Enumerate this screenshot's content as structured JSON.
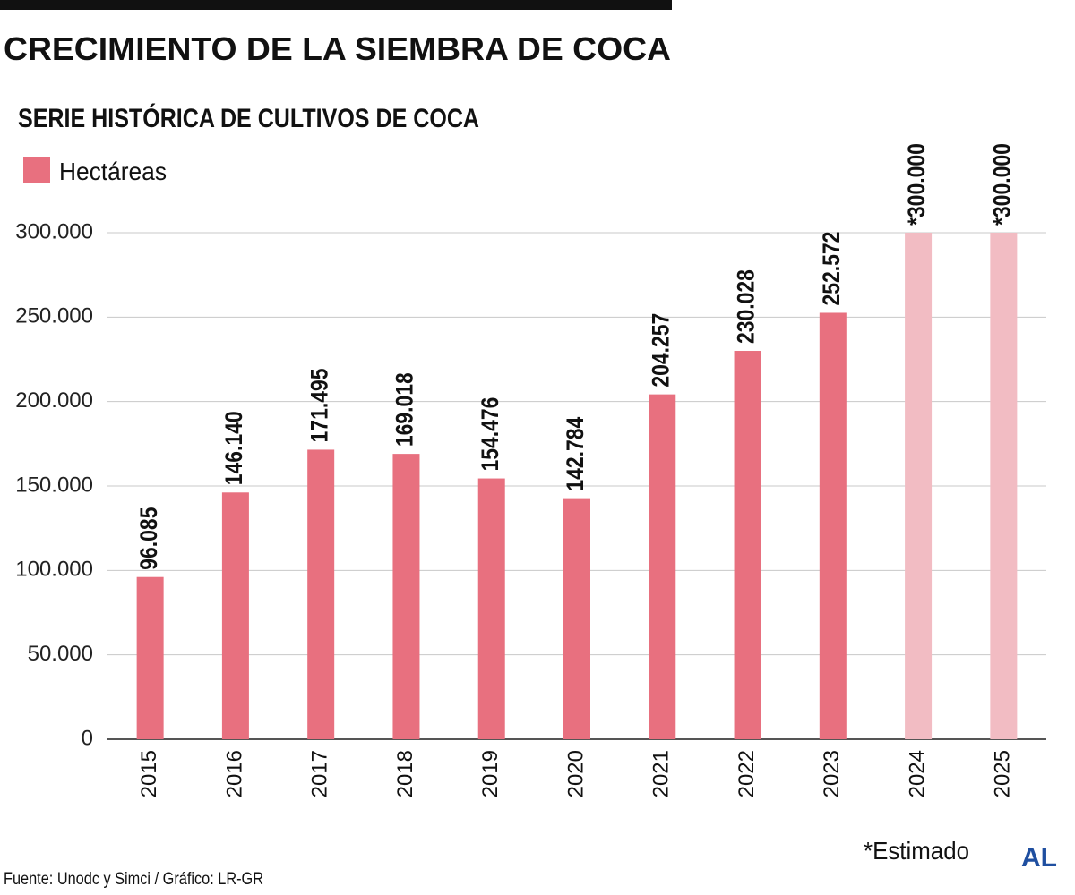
{
  "chart_data": {
    "type": "bar",
    "title": "CRECIMIENTO DE LA SIEMBRA DE COCA",
    "subtitle": "SERIE HISTÓRICA DE CULTIVOS DE COCA",
    "categories": [
      "2015",
      "2016",
      "2017",
      "2018",
      "2019",
      "2020",
      "2021",
      "2022",
      "2023",
      "2024",
      "2025"
    ],
    "series": [
      {
        "name": "Hectáreas",
        "color": "#e8707f",
        "values": [
          96085,
          146140,
          171495,
          169018,
          154476,
          142784,
          204257,
          230028,
          252572,
          300000,
          300000
        ],
        "value_labels": [
          "96.085",
          "146.140",
          "171.495",
          "169.018",
          "154.476",
          "142.784",
          "204.257",
          "230.028",
          "252.572",
          "*300.000",
          "*300.000"
        ],
        "bar_colors": [
          "#e8707f",
          "#e8707f",
          "#e8707f",
          "#e8707f",
          "#e8707f",
          "#e8707f",
          "#e8707f",
          "#e8707f",
          "#e8707f",
          "#f2bcc3",
          "#f2bcc3"
        ]
      }
    ],
    "ylim": [
      0,
      300000
    ],
    "yticks": [
      0,
      {
        "value": 50000,
        "label": "50.000"
      },
      {
        "value": 100000,
        "label": "100.000"
      },
      {
        "value": 150000,
        "label": "150.000"
      },
      {
        "value": 200000,
        "label": "200.000"
      },
      {
        "value": 250000,
        "label": "250.000"
      },
      {
        "value": 300000,
        "label": "300.000"
      }
    ],
    "grid": true,
    "note": "*Estimado",
    "source": "Fuente: Unodc y Simci / Gráfico: LR-GR",
    "logo": "AL"
  }
}
